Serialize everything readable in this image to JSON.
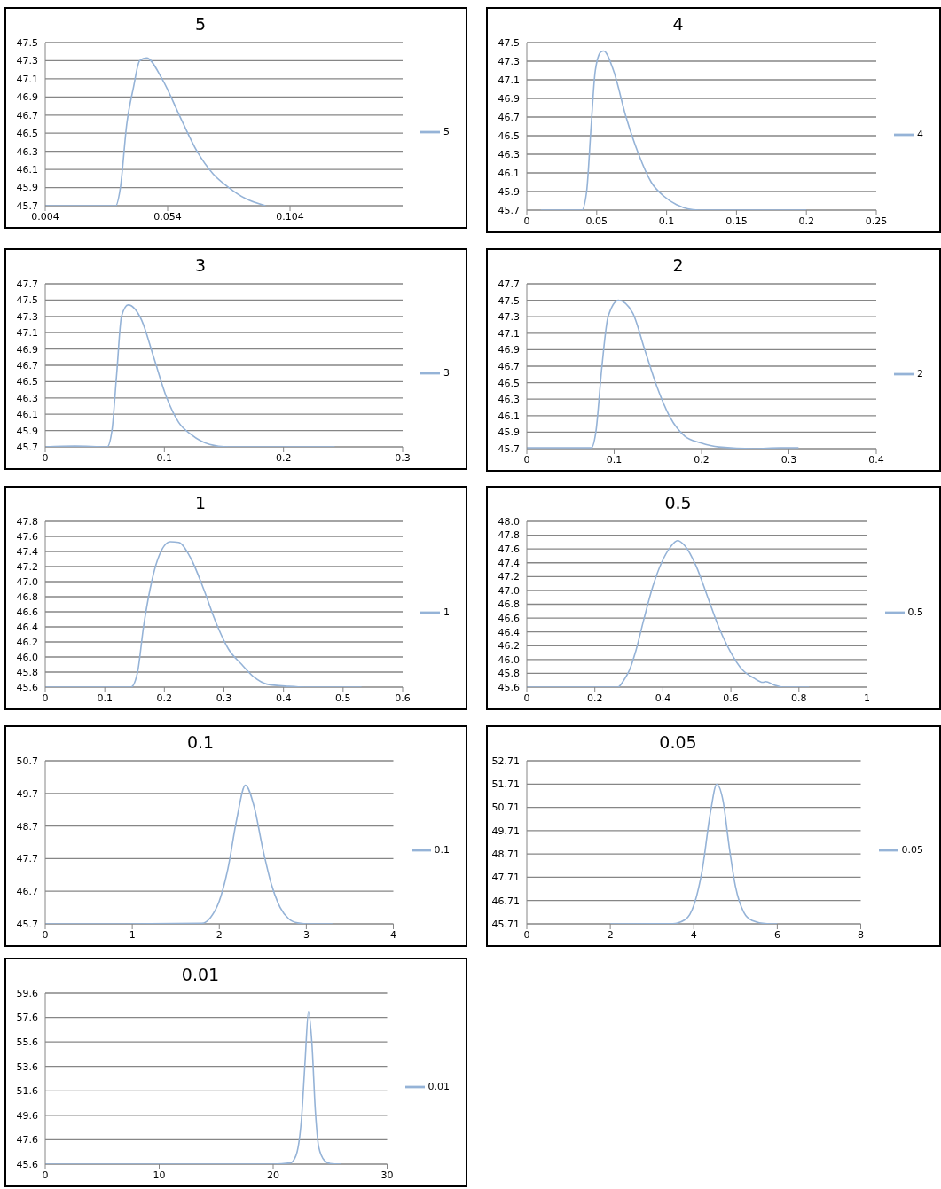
{
  "chart_data": [
    {
      "type": "line",
      "title": "5",
      "xlim": [
        0.004,
        0.15
      ],
      "xticks": [
        0.004,
        0.054,
        0.104
      ],
      "ylim": [
        45.7,
        47.5
      ],
      "yticks": [
        45.7,
        45.9,
        46.1,
        46.3,
        46.5,
        46.7,
        46.9,
        47.1,
        47.3,
        47.5
      ],
      "grid": "y",
      "legend": "right",
      "series": [
        {
          "name": "5",
          "color": "#95b3d7",
          "x": [
            0.004,
            0.02,
            0.0328,
            0.0347,
            0.0373,
            0.04,
            0.0426,
            0.0454,
            0.0517,
            0.0596,
            0.066,
            0.0726,
            0.079,
            0.0857,
            0.094
          ],
          "values": [
            45.7,
            45.7,
            45.7,
            45.9,
            46.6,
            47.0,
            47.3,
            47.33,
            47.1,
            46.65,
            46.3,
            46.05,
            45.9,
            45.78,
            45.7
          ]
        }
      ]
    },
    {
      "type": "line",
      "title": "4",
      "xlim": [
        0,
        0.25
      ],
      "xticks": [
        0,
        0.05,
        0.1,
        0.15,
        0.2,
        0.25
      ],
      "ylim": [
        45.7,
        47.5
      ],
      "yticks": [
        45.7,
        45.9,
        46.1,
        46.3,
        46.5,
        46.7,
        46.9,
        47.1,
        47.3,
        47.5
      ],
      "grid": "y",
      "legend": "right",
      "series": [
        {
          "name": "4",
          "color": "#95b3d7",
          "x": [
            0.01,
            0.025,
            0.0394,
            0.0428,
            0.046,
            0.049,
            0.053,
            0.055,
            0.062,
            0.071,
            0.08,
            0.089,
            0.098,
            0.107,
            0.123,
            0.16,
            0.2
          ],
          "values": [
            45.7,
            45.7,
            45.7,
            45.9,
            46.6,
            47.2,
            47.4,
            47.41,
            47.2,
            46.7,
            46.3,
            46.0,
            45.85,
            45.76,
            45.7,
            45.7,
            45.7
          ]
        }
      ]
    },
    {
      "type": "line",
      "title": "3",
      "xlim": [
        0,
        0.3
      ],
      "xticks": [
        0,
        0.1,
        0.2,
        0.3
      ],
      "ylim": [
        45.7,
        47.7
      ],
      "yticks": [
        45.7,
        45.9,
        46.1,
        46.3,
        46.5,
        46.7,
        46.9,
        47.1,
        47.3,
        47.5,
        47.7
      ],
      "grid": "y",
      "legend": "right",
      "series": [
        {
          "name": "3",
          "color": "#95b3d7",
          "x": [
            0,
            0.025,
            0.052,
            0.056,
            0.06,
            0.064,
            0.0696,
            0.081,
            0.091,
            0.102,
            0.112,
            0.1225,
            0.138,
            0.154,
            0.2,
            0.243
          ],
          "values": [
            45.7,
            45.71,
            45.7,
            45.9,
            46.6,
            47.3,
            47.44,
            47.25,
            46.8,
            46.3,
            46.0,
            45.85,
            45.73,
            45.7,
            45.7,
            45.7
          ]
        }
      ]
    },
    {
      "type": "line",
      "title": "2",
      "xlim": [
        0,
        0.4
      ],
      "xticks": [
        0,
        0.1,
        0.2,
        0.3,
        0.4
      ],
      "ylim": [
        45.7,
        47.7
      ],
      "yticks": [
        45.7,
        45.9,
        46.1,
        46.3,
        46.5,
        46.7,
        46.9,
        47.1,
        47.3,
        47.5,
        47.7
      ],
      "grid": "y",
      "legend": "right",
      "series": [
        {
          "name": "2",
          "color": "#95b3d7",
          "x": [
            0,
            0.035,
            0.074,
            0.079,
            0.086,
            0.093,
            0.105,
            0.121,
            0.135,
            0.149,
            0.163,
            0.181,
            0.199,
            0.22,
            0.26,
            0.29,
            0.311
          ],
          "values": [
            45.71,
            45.71,
            45.71,
            45.9,
            46.7,
            47.3,
            47.5,
            47.35,
            46.9,
            46.45,
            46.1,
            45.85,
            45.77,
            45.72,
            45.7,
            45.71,
            45.71
          ]
        }
      ]
    },
    {
      "type": "line",
      "title": "1",
      "xlim": [
        0,
        0.6
      ],
      "xticks": [
        0,
        0.1,
        0.2,
        0.3,
        0.4,
        0.5,
        0.6
      ],
      "ylim": [
        45.6,
        47.8
      ],
      "yticks": [
        45.6,
        45.8,
        {
          "value": 46,
          "label": "46.0"
        },
        46.2,
        46.4,
        46.6,
        46.8,
        {
          "value": 47,
          "label": "47.0"
        },
        47.2,
        47.4,
        47.6,
        47.8
      ],
      "grid": "y",
      "legend": "right",
      "series": [
        {
          "name": "1",
          "color": "#95b3d7",
          "x": [
            0,
            0.07,
            0.144,
            0.155,
            0.165,
            0.176,
            0.189,
            0.21,
            0.224,
            0.245,
            0.266,
            0.287,
            0.308,
            0.33,
            0.351,
            0.372,
            0.409,
            0.436,
            0.531
          ],
          "values": [
            45.6,
            45.6,
            45.6,
            45.8,
            46.4,
            46.9,
            47.3,
            47.53,
            47.52,
            47.3,
            46.9,
            46.45,
            46.1,
            45.9,
            45.73,
            45.64,
            45.61,
            45.6,
            45.6
          ]
        }
      ]
    },
    {
      "type": "line",
      "title": "0.5",
      "xlim": [
        0,
        1
      ],
      "xticks": [
        0,
        0.2,
        0.4,
        0.6,
        0.8,
        1
      ],
      "ylim": [
        45.6,
        48
      ],
      "yticks": [
        45.6,
        45.8,
        {
          "value": 46,
          "label": "46.0"
        },
        46.2,
        46.4,
        46.6,
        46.8,
        {
          "value": 47,
          "label": "47.0"
        },
        47.2,
        47.4,
        47.6,
        47.8,
        {
          "value": 48,
          "label": "48.0"
        }
      ],
      "grid": "y",
      "legend": "right",
      "series": [
        {
          "name": "0.5",
          "color": "#95b3d7",
          "x": [
            0,
            0.15,
            0.268,
            0.285,
            0.302,
            0.319,
            0.345,
            0.37,
            0.396,
            0.421,
            0.443,
            0.464,
            0.498,
            0.532,
            0.566,
            0.6,
            0.634,
            0.668,
            0.694,
            0.702,
            0.728,
            0.753,
            0.83
          ],
          "values": [
            45.6,
            45.6,
            45.6,
            45.7,
            45.85,
            46.1,
            46.6,
            47.05,
            47.4,
            47.62,
            47.72,
            47.65,
            47.35,
            46.9,
            46.45,
            46.1,
            45.85,
            45.73,
            45.67,
            45.68,
            45.63,
            45.6,
            45.6
          ]
        }
      ]
    },
    {
      "type": "line",
      "title": "0.1",
      "xlim": [
        0,
        4
      ],
      "xticks": [
        0,
        1,
        2,
        3,
        4
      ],
      "ylim": [
        45.7,
        50.7
      ],
      "yticks": [
        45.7,
        46.7,
        47.7,
        48.7,
        49.7,
        50.7
      ],
      "grid": "y",
      "legend": "right",
      "series": [
        {
          "name": "0.1",
          "color": "#95b3d7",
          "x": [
            0,
            0.9,
            1.8,
            1.9,
            2.0,
            2.1,
            2.2,
            2.3,
            2.4,
            2.5,
            2.6,
            2.7,
            2.8,
            2.9,
            3.0,
            3.3
          ],
          "values": [
            45.7,
            45.7,
            45.72,
            45.9,
            46.4,
            47.4,
            48.9,
            49.95,
            49.3,
            48.0,
            46.9,
            46.2,
            45.85,
            45.73,
            45.7,
            45.7
          ]
        }
      ]
    },
    {
      "type": "line",
      "title": "0.05",
      "xlim": [
        0,
        8
      ],
      "xticks": [
        0,
        2,
        4,
        6,
        8
      ],
      "ylim": [
        45.71,
        52.71
      ],
      "yticks": [
        45.71,
        46.71,
        47.71,
        48.71,
        49.71,
        50.71,
        51.71,
        52.71
      ],
      "grid": "y",
      "legend": "right",
      "series": [
        {
          "name": "0.05",
          "color": "#95b3d7",
          "x": [
            2.0,
            3.5,
            3.8,
            4.0,
            4.2,
            4.4,
            4.55,
            4.7,
            4.85,
            5.0,
            5.2,
            5.4,
            5.7,
            6.0
          ],
          "values": [
            45.71,
            45.72,
            45.9,
            46.5,
            48.0,
            50.5,
            51.7,
            51.0,
            49.0,
            47.3,
            46.2,
            45.85,
            45.73,
            45.71
          ]
        }
      ]
    },
    {
      "type": "line",
      "title": "0.01",
      "xlim": [
        0,
        30
      ],
      "xticks": [
        0,
        10,
        20,
        30
      ],
      "ylim": [
        45.6,
        59.6
      ],
      "yticks": [
        45.6,
        47.6,
        49.6,
        51.6,
        53.6,
        55.6,
        57.6,
        59.6
      ],
      "grid": "y",
      "legend": "right",
      "series": [
        {
          "name": "0.01",
          "color": "#95b3d7",
          "x": [
            0,
            10,
            20,
            21.5,
            22,
            22.5,
            22.8,
            23.1,
            23.4,
            23.7,
            24,
            24.5,
            25,
            26
          ],
          "values": [
            45.6,
            45.6,
            45.6,
            45.7,
            46.3,
            49.5,
            54,
            58.1,
            55.5,
            50,
            47,
            45.9,
            45.65,
            45.6
          ]
        }
      ]
    }
  ]
}
